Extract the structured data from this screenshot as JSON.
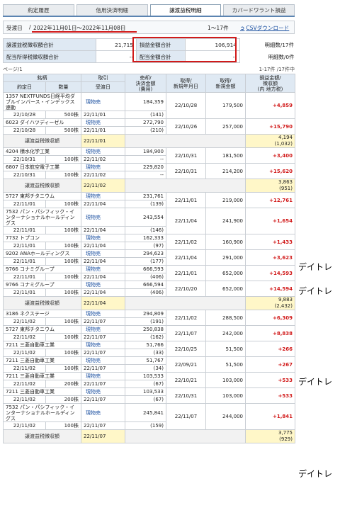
{
  "tabs": [
    "約定履歴",
    "信用決済明細",
    "譲渡益税明細",
    "カバードワラント損益"
  ],
  "datebar": {
    "label": "受渡日",
    "range": "2022年11月01日～2022年11月08日",
    "count": "1〜17件",
    "csv_label": "CSVダウンロード"
  },
  "summary": {
    "row1": {
      "label1": "譲渡益税徴収額合計",
      "value1": "21,715",
      "label2": "損益金額合計",
      "value2": "106,914",
      "note": "明細数/17件"
    },
    "row2": {
      "label1": "配当所得税徴収額合計",
      "value1": "--",
      "label2": "配当金額合計",
      "value2": "--",
      "note": "明細数/0件"
    }
  },
  "pagebar": {
    "left": "ページ/1",
    "right": "1-17件 /17件中"
  },
  "headers": {
    "name": "銘柄",
    "trade_date": "約定日",
    "qty": "数量",
    "type": "取引",
    "settle_date": "受渡日",
    "sale": "売却/\n決済金額\n(費用)",
    "acq_date": "取得/\n新規年月日",
    "acq_amt": "取得/\n新規金額",
    "pnl": "損益金額/\n徴収額\n(内 地方税)"
  },
  "rows": [
    {
      "kind": "trade",
      "name": "1357 NEXTFUNDS日経平均ダブルインバース・インデックス連動",
      "trade_date": "22/10/28",
      "qty": "500株",
      "type": "現物売",
      "settle": "22/11/01",
      "sale": "184,359",
      "fee": "(141)",
      "acq_date": "22/10/28",
      "acq_amt": "179,500",
      "pnl": "+4,859"
    },
    {
      "kind": "trade",
      "name": "6023 ダイハツディーゼル",
      "trade_date": "22/10/28",
      "qty": "500株",
      "type": "現物売",
      "settle": "22/11/01",
      "sale": "272,790",
      "fee": "(210)",
      "acq_date": "22/10/26",
      "acq_amt": "257,000",
      "pnl": "+15,790"
    },
    {
      "kind": "sub",
      "label": "譲渡益税徴収額",
      "settle": "22/11/01",
      "amount": "4,194",
      "local": "(1,032)"
    },
    {
      "kind": "trade",
      "name": "4204 積水化学工業",
      "trade_date": "22/10/31",
      "qty": "100株",
      "type": "現物売",
      "settle": "22/11/02",
      "sale": "184,900",
      "fee": "--",
      "acq_date": "22/10/31",
      "acq_amt": "181,500",
      "pnl": "+3,400"
    },
    {
      "kind": "trade",
      "name": "6807 日本航空電子工業",
      "trade_date": "22/10/31",
      "qty": "100株",
      "type": "現物売",
      "settle": "22/11/02",
      "sale": "229,820",
      "fee": "--",
      "acq_date": "22/10/31",
      "acq_amt": "214,200",
      "pnl": "+15,620"
    },
    {
      "kind": "sub",
      "label": "譲渡益税徴収額",
      "settle": "22/11/02",
      "amount": "3,863",
      "local": "(951)"
    },
    {
      "kind": "trade",
      "name": "5727 東邦チタニウム",
      "trade_date": "22/11/01",
      "qty": "100株",
      "type": "現物売",
      "settle": "22/11/04",
      "sale": "231,761",
      "fee": "(139)",
      "acq_date": "22/11/01",
      "acq_amt": "219,000",
      "pnl": "+12,761"
    },
    {
      "kind": "trade",
      "name": "7532 パン・パシフィック・インターナショナルホールディングス",
      "trade_date": "22/11/01",
      "qty": "100株",
      "type": "現物売",
      "settle": "22/11/04",
      "sale": "243,554",
      "fee": "(146)",
      "acq_date": "22/11/04",
      "acq_amt": "241,900",
      "pnl": "+1,654"
    },
    {
      "kind": "trade",
      "name": "7732 トプコン",
      "trade_date": "22/11/01",
      "qty": "100株",
      "type": "現物売",
      "settle": "22/11/04",
      "sale": "162,333",
      "fee": "(97)",
      "acq_date": "22/11/02",
      "acq_amt": "160,900",
      "pnl": "+1,433"
    },
    {
      "kind": "trade",
      "name": "9202 ANAホールディングス",
      "trade_date": "22/11/01",
      "qty": "100株",
      "type": "現物売",
      "settle": "22/11/04",
      "sale": "294,623",
      "fee": "(177)",
      "acq_date": "22/11/04",
      "acq_amt": "291,000",
      "pnl": "+3,623"
    },
    {
      "kind": "trade",
      "name": "9766 コナミグループ",
      "trade_date": "22/11/01",
      "qty": "100株",
      "type": "現物売",
      "settle": "22/11/04",
      "sale": "666,593",
      "fee": "(406)",
      "acq_date": "22/11/01",
      "acq_amt": "652,000",
      "pnl": "+14,593"
    },
    {
      "kind": "trade",
      "name": "9766 コナミグループ",
      "trade_date": "22/11/01",
      "qty": "100株",
      "type": "現物売",
      "settle": "22/11/04",
      "sale": "666,594",
      "fee": "(406)",
      "acq_date": "22/10/20",
      "acq_amt": "652,000",
      "pnl": "+14,594"
    },
    {
      "kind": "sub",
      "label": "譲渡益税徴収額",
      "settle": "22/11/04",
      "amount": "9,883",
      "local": "(2,432)"
    },
    {
      "kind": "trade",
      "name": "3186 ネクステージ",
      "trade_date": "22/11/02",
      "qty": "100株",
      "type": "現物売",
      "settle": "22/11/07",
      "sale": "294,809",
      "fee": "(191)",
      "acq_date": "22/11/02",
      "acq_amt": "288,500",
      "pnl": "+6,309"
    },
    {
      "kind": "trade",
      "name": "5727 東邦チタニウム",
      "trade_date": "22/11/02",
      "qty": "100株",
      "type": "現物売",
      "settle": "22/11/07",
      "sale": "250,838",
      "fee": "(162)",
      "acq_date": "22/11/07",
      "acq_amt": "242,000",
      "pnl": "+8,838"
    },
    {
      "kind": "trade",
      "name": "7211 三菱自動車工業",
      "trade_date": "22/11/02",
      "qty": "100株",
      "type": "現物売",
      "settle": "22/11/07",
      "sale": "51,766",
      "fee": "(33)",
      "acq_date": "22/10/25",
      "acq_amt": "51,500",
      "pnl": "+266"
    },
    {
      "kind": "trade",
      "name": "7211 三菱自動車工業",
      "trade_date": "22/11/02",
      "qty": "100株",
      "type": "現物売",
      "settle": "22/11/07",
      "sale": "51,767",
      "fee": "(34)",
      "acq_date": "22/09/21",
      "acq_amt": "51,500",
      "pnl": "+267"
    },
    {
      "kind": "trade",
      "name": "7211 三菱自動車工業",
      "trade_date": "22/11/02",
      "qty": "200株",
      "type": "現物売",
      "settle": "22/11/07",
      "sale": "103,533",
      "fee": "(67)",
      "acq_date": "22/10/21",
      "acq_amt": "103,000",
      "pnl": "+533"
    },
    {
      "kind": "trade",
      "name": "7211 三菱自動車工業",
      "trade_date": "22/11/02",
      "qty": "200株",
      "type": "現物売",
      "settle": "22/11/07",
      "sale": "103,533",
      "fee": "(67)",
      "acq_date": "22/10/31",
      "acq_amt": "103,000",
      "pnl": "+533"
    },
    {
      "kind": "trade",
      "name": "7532 パン・パシフィック・インターナショナルホールディングス",
      "trade_date": "22/11/02",
      "qty": "100株",
      "type": "現物売",
      "settle": "22/11/07",
      "sale": "245,841",
      "fee": "(159)",
      "acq_date": "22/11/07",
      "acq_amt": "244,000",
      "pnl": "+1,841"
    },
    {
      "kind": "sub",
      "label": "譲渡益税徴収額",
      "settle": "22/11/07",
      "amount": "3,775",
      "local": "(929)"
    }
  ],
  "annotations": [
    {
      "text": "デイトレ"
    },
    {
      "text": "デイトレ"
    },
    {
      "text": "デイトレ"
    },
    {
      "text": "デイトレ"
    }
  ]
}
